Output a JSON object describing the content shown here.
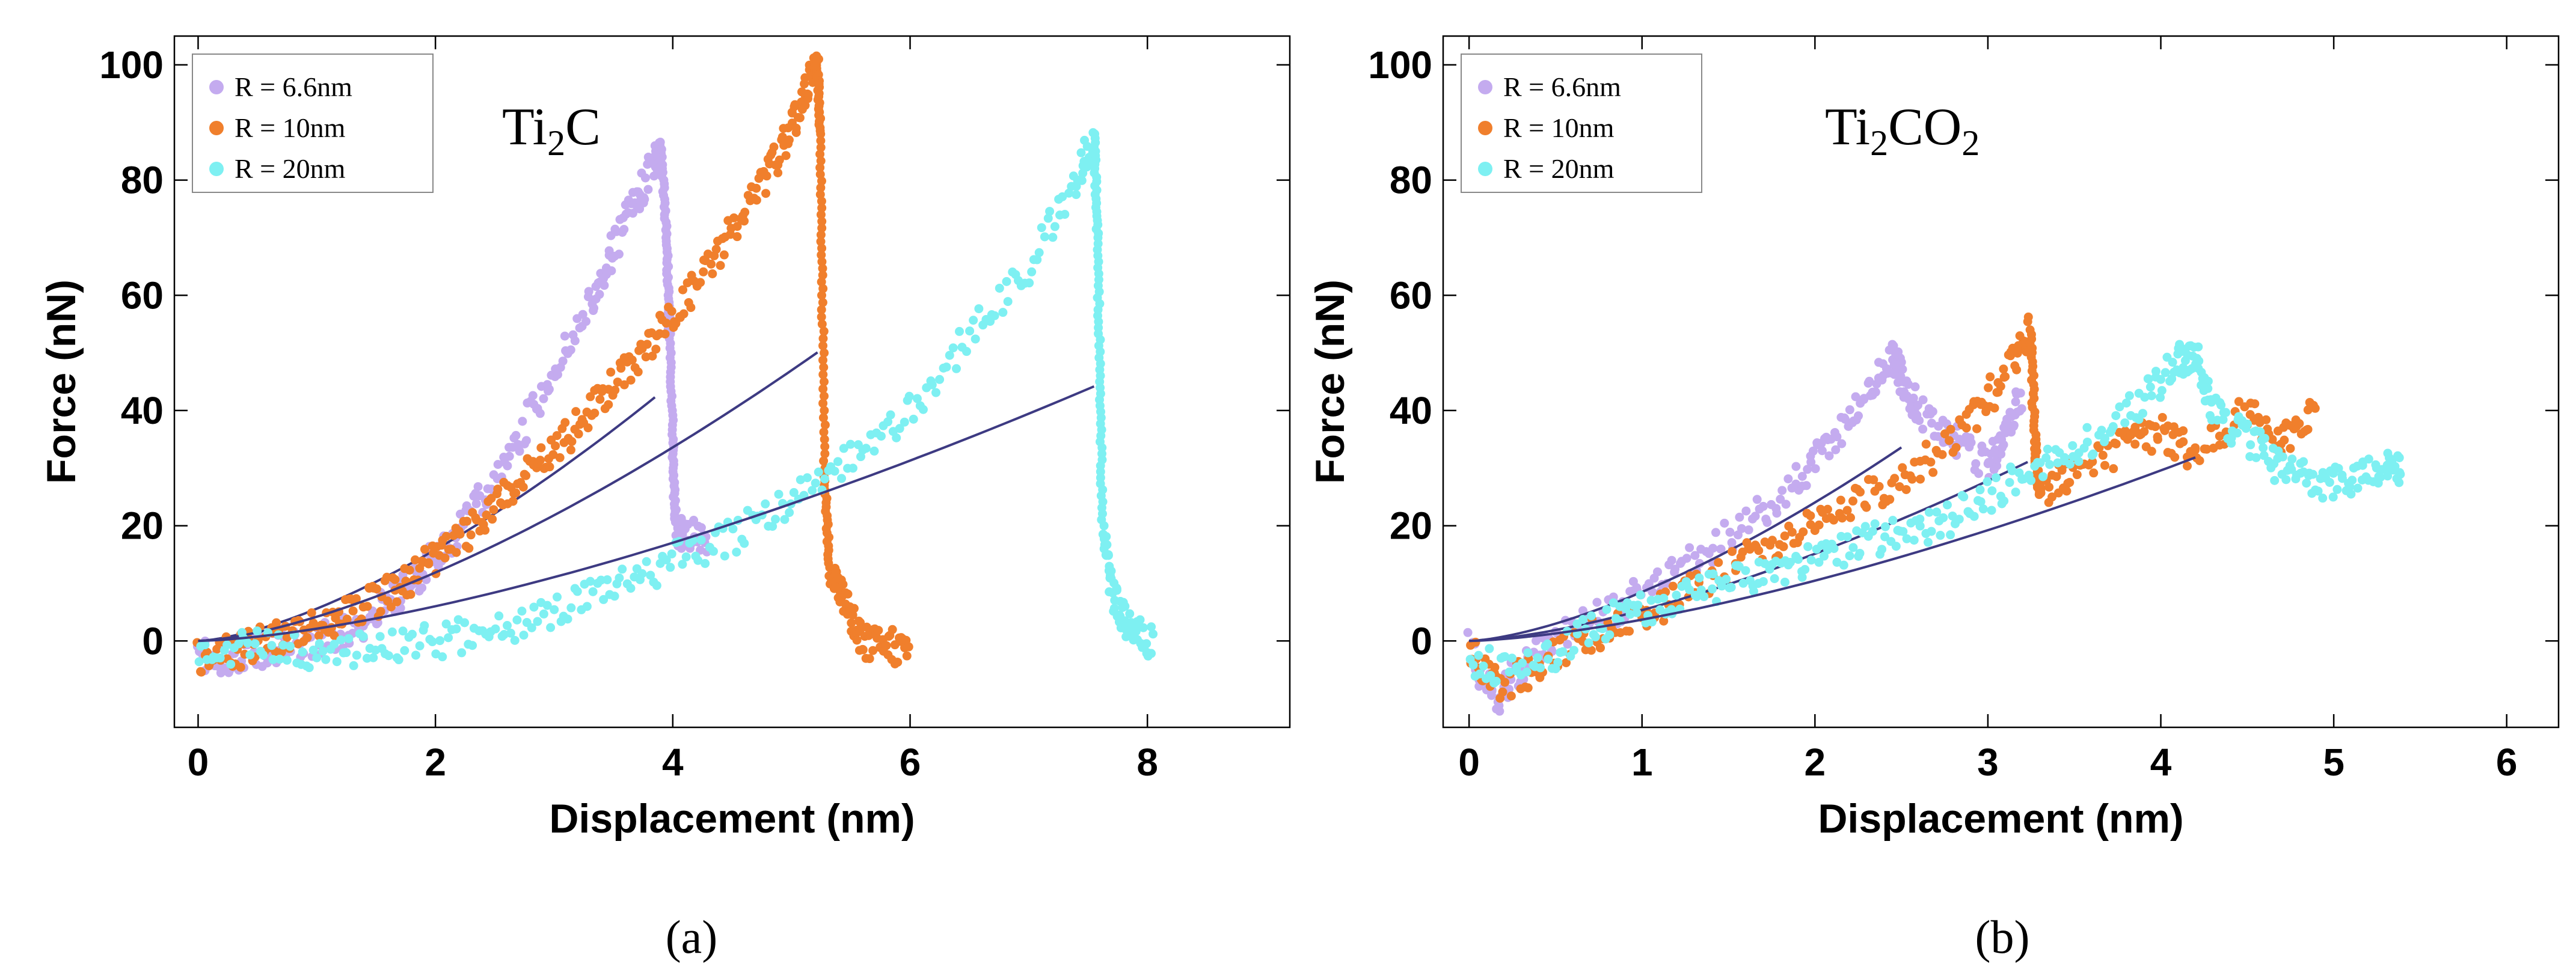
{
  "chart_data": [
    {
      "type": "scatter",
      "panel_label": "(a)",
      "annotation": {
        "base": "Ti",
        "sub": "2",
        "rest": "C",
        "sub2": ""
      },
      "xlabel": "Displacement (nm)",
      "ylabel": "Force (nN)",
      "xlim": [
        -0.2,
        9.2
      ],
      "ylim": [
        -15,
        105
      ],
      "xticks": [
        0,
        2,
        4,
        6,
        8
      ],
      "yticks": [
        0,
        20,
        40,
        60,
        80,
        100
      ],
      "legend_position": "top-left",
      "series": [
        {
          "name": "R = 6.6nm",
          "color": "#c4abef",
          "points": [
            [
              0,
              -2
            ],
            [
              0.3,
              -3
            ],
            [
              0.6,
              -1
            ],
            [
              0.9,
              0
            ],
            [
              1.2,
              1
            ],
            [
              1.5,
              5
            ],
            [
              1.8,
              10
            ],
            [
              2.1,
              17
            ],
            [
              2.4,
              25
            ],
            [
              2.7,
              35
            ],
            [
              3.0,
              47
            ],
            [
              3.3,
              58
            ],
            [
              3.5,
              68
            ],
            [
              3.7,
              77
            ],
            [
              3.85,
              83
            ],
            [
              3.9,
              86
            ],
            [
              3.95,
              70
            ],
            [
              3.97,
              55
            ],
            [
              4.0,
              35
            ],
            [
              4.02,
              20
            ],
            [
              4.1,
              18
            ],
            [
              4.3,
              18
            ]
          ],
          "fit": {
            "coef": 5.6,
            "xmax": 3.85
          }
        },
        {
          "name": "R = 10nm",
          "color": "#f07f2c",
          "points": [
            [
              0,
              -3
            ],
            [
              0.3,
              -2
            ],
            [
              0.6,
              0
            ],
            [
              0.9,
              2
            ],
            [
              1.2,
              4
            ],
            [
              1.5,
              7
            ],
            [
              1.8,
              11
            ],
            [
              2.1,
              16
            ],
            [
              2.4,
              21
            ],
            [
              2.7,
              27
            ],
            [
              3.0,
              33
            ],
            [
              3.3,
              40
            ],
            [
              3.6,
              47
            ],
            [
              3.9,
              54
            ],
            [
              4.2,
              62
            ],
            [
              4.5,
              71
            ],
            [
              4.8,
              81
            ],
            [
              5.0,
              89
            ],
            [
              5.15,
              97
            ],
            [
              5.22,
              101
            ],
            [
              5.24,
              88
            ],
            [
              5.26,
              60
            ],
            [
              5.28,
              30
            ],
            [
              5.32,
              12
            ],
            [
              5.4,
              10
            ],
            [
              5.5,
              4
            ],
            [
              5.6,
              0
            ],
            [
              5.8,
              -1
            ],
            [
              6.0,
              -1
            ]
          ],
          "fit": {
            "coef": 4.2,
            "xmax": 5.22
          }
        },
        {
          "name": "R = 20nm",
          "color": "#7ef0f2",
          "points": [
            [
              0,
              -2
            ],
            [
              0.5,
              -1
            ],
            [
              1.0,
              -2
            ],
            [
              1.5,
              -1
            ],
            [
              2.0,
              0
            ],
            [
              2.5,
              2
            ],
            [
              3.0,
              5
            ],
            [
              3.5,
              9
            ],
            [
              4.0,
              14
            ],
            [
              4.5,
              18
            ],
            [
              5.0,
              24
            ],
            [
              5.5,
              32
            ],
            [
              6.0,
              40
            ],
            [
              6.5,
              53
            ],
            [
              7.0,
              65
            ],
            [
              7.4,
              80
            ],
            [
              7.55,
              88
            ],
            [
              7.58,
              70
            ],
            [
              7.6,
              45
            ],
            [
              7.62,
              20
            ],
            [
              7.7,
              8
            ],
            [
              7.8,
              4
            ],
            [
              7.9,
              2
            ],
            [
              8.05,
              -1
            ]
          ],
          "fit": {
            "coef": 2.13,
            "xmax": 7.55
          }
        }
      ]
    },
    {
      "type": "scatter",
      "panel_label": "(b)",
      "annotation": {
        "base": "Ti",
        "sub": "2",
        "rest": "CO",
        "sub2": "2"
      },
      "xlabel": "Displacement (nm)",
      "ylabel": "Force (nN)",
      "xlim": [
        -0.15,
        6.3
      ],
      "ylim": [
        -15,
        105
      ],
      "xticks": [
        0,
        1,
        2,
        3,
        4,
        5,
        6
      ],
      "yticks": [
        0,
        20,
        40,
        60,
        80,
        100
      ],
      "legend_position": "top-left",
      "series": [
        {
          "name": "R = 6.6nm",
          "color": "#c4abef",
          "points": [
            [
              0,
              -1
            ],
            [
              0.15,
              -10
            ],
            [
              0.3,
              -5
            ],
            [
              0.5,
              0
            ],
            [
              0.8,
              5
            ],
            [
              1.0,
              8
            ],
            [
              1.3,
              14
            ],
            [
              1.6,
              20
            ],
            [
              1.9,
              28
            ],
            [
              2.1,
              35
            ],
            [
              2.3,
              43
            ],
            [
              2.45,
              50
            ],
            [
              2.5,
              46
            ],
            [
              2.6,
              40
            ],
            [
              2.8,
              35
            ],
            [
              3.0,
              30
            ],
            [
              3.1,
              36
            ],
            [
              3.2,
              42
            ]
          ],
          "fit": {
            "coef": 8.5,
            "xmax": 2.5
          }
        },
        {
          "name": "R = 10nm",
          "color": "#f07f2c",
          "points": [
            [
              0,
              -2
            ],
            [
              0.2,
              -8
            ],
            [
              0.5,
              -2
            ],
            [
              0.8,
              2
            ],
            [
              1.1,
              6
            ],
            [
              1.4,
              11
            ],
            [
              1.7,
              16
            ],
            [
              2.0,
              20
            ],
            [
              2.3,
              25
            ],
            [
              2.6,
              30
            ],
            [
              2.9,
              38
            ],
            [
              3.1,
              46
            ],
            [
              3.25,
              54
            ],
            [
              3.27,
              35
            ],
            [
              3.3,
              25
            ],
            [
              3.5,
              30
            ],
            [
              3.8,
              34
            ],
            [
              4.0,
              36
            ],
            [
              4.2,
              32
            ],
            [
              4.5,
              40
            ],
            [
              4.7,
              35
            ],
            [
              4.9,
              40
            ]
          ],
          "fit": {
            "coef": 5.35,
            "xmax": 3.23
          }
        },
        {
          "name": "R = 20nm",
          "color": "#7ef0f2",
          "points": [
            [
              0,
              -3
            ],
            [
              0.3,
              -6
            ],
            [
              0.6,
              0
            ],
            [
              0.9,
              5
            ],
            [
              1.2,
              7
            ],
            [
              1.5,
              10
            ],
            [
              1.8,
              12
            ],
            [
              2.1,
              15
            ],
            [
              2.4,
              18
            ],
            [
              2.7,
              20
            ],
            [
              3.0,
              25
            ],
            [
              3.3,
              30
            ],
            [
              3.6,
              35
            ],
            [
              3.9,
              42
            ],
            [
              4.1,
              49
            ],
            [
              4.2,
              50
            ],
            [
              4.3,
              40
            ],
            [
              4.5,
              35
            ],
            [
              4.7,
              30
            ],
            [
              4.9,
              27
            ],
            [
              5.1,
              28
            ],
            [
              5.3,
              30
            ],
            [
              5.4,
              30
            ]
          ],
          "fit": {
            "coef": 3.7,
            "xmax": 4.2
          }
        }
      ]
    }
  ]
}
